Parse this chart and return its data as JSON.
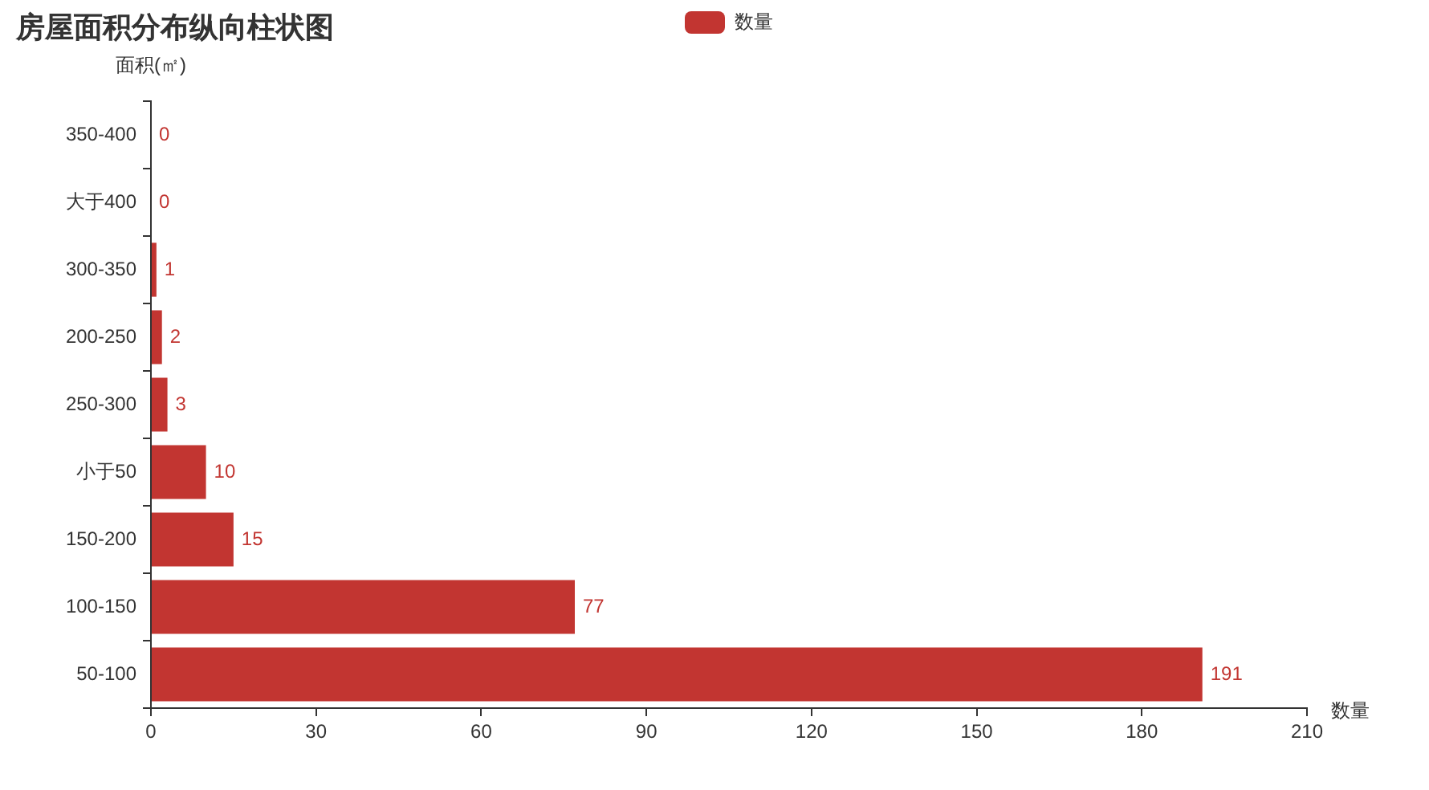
{
  "chart_data": {
    "type": "bar",
    "orientation": "horizontal",
    "title": "房屋面积分布纵向柱状图",
    "xlabel": "数量",
    "ylabel": "面积(㎡)",
    "categories": [
      "350-400",
      "大于400",
      "300-350",
      "200-250",
      "250-300",
      "小于50",
      "150-200",
      "100-150",
      "50-100"
    ],
    "series": [
      {
        "name": "数量",
        "color": "#c23531",
        "values": [
          0,
          0,
          1,
          2,
          3,
          10,
          15,
          77,
          191
        ]
      }
    ],
    "xlim": [
      0,
      210
    ],
    "xticks": [
      0,
      30,
      60,
      90,
      120,
      150,
      180,
      210
    ],
    "data_labels": true,
    "legend": "top",
    "grid": false
  }
}
